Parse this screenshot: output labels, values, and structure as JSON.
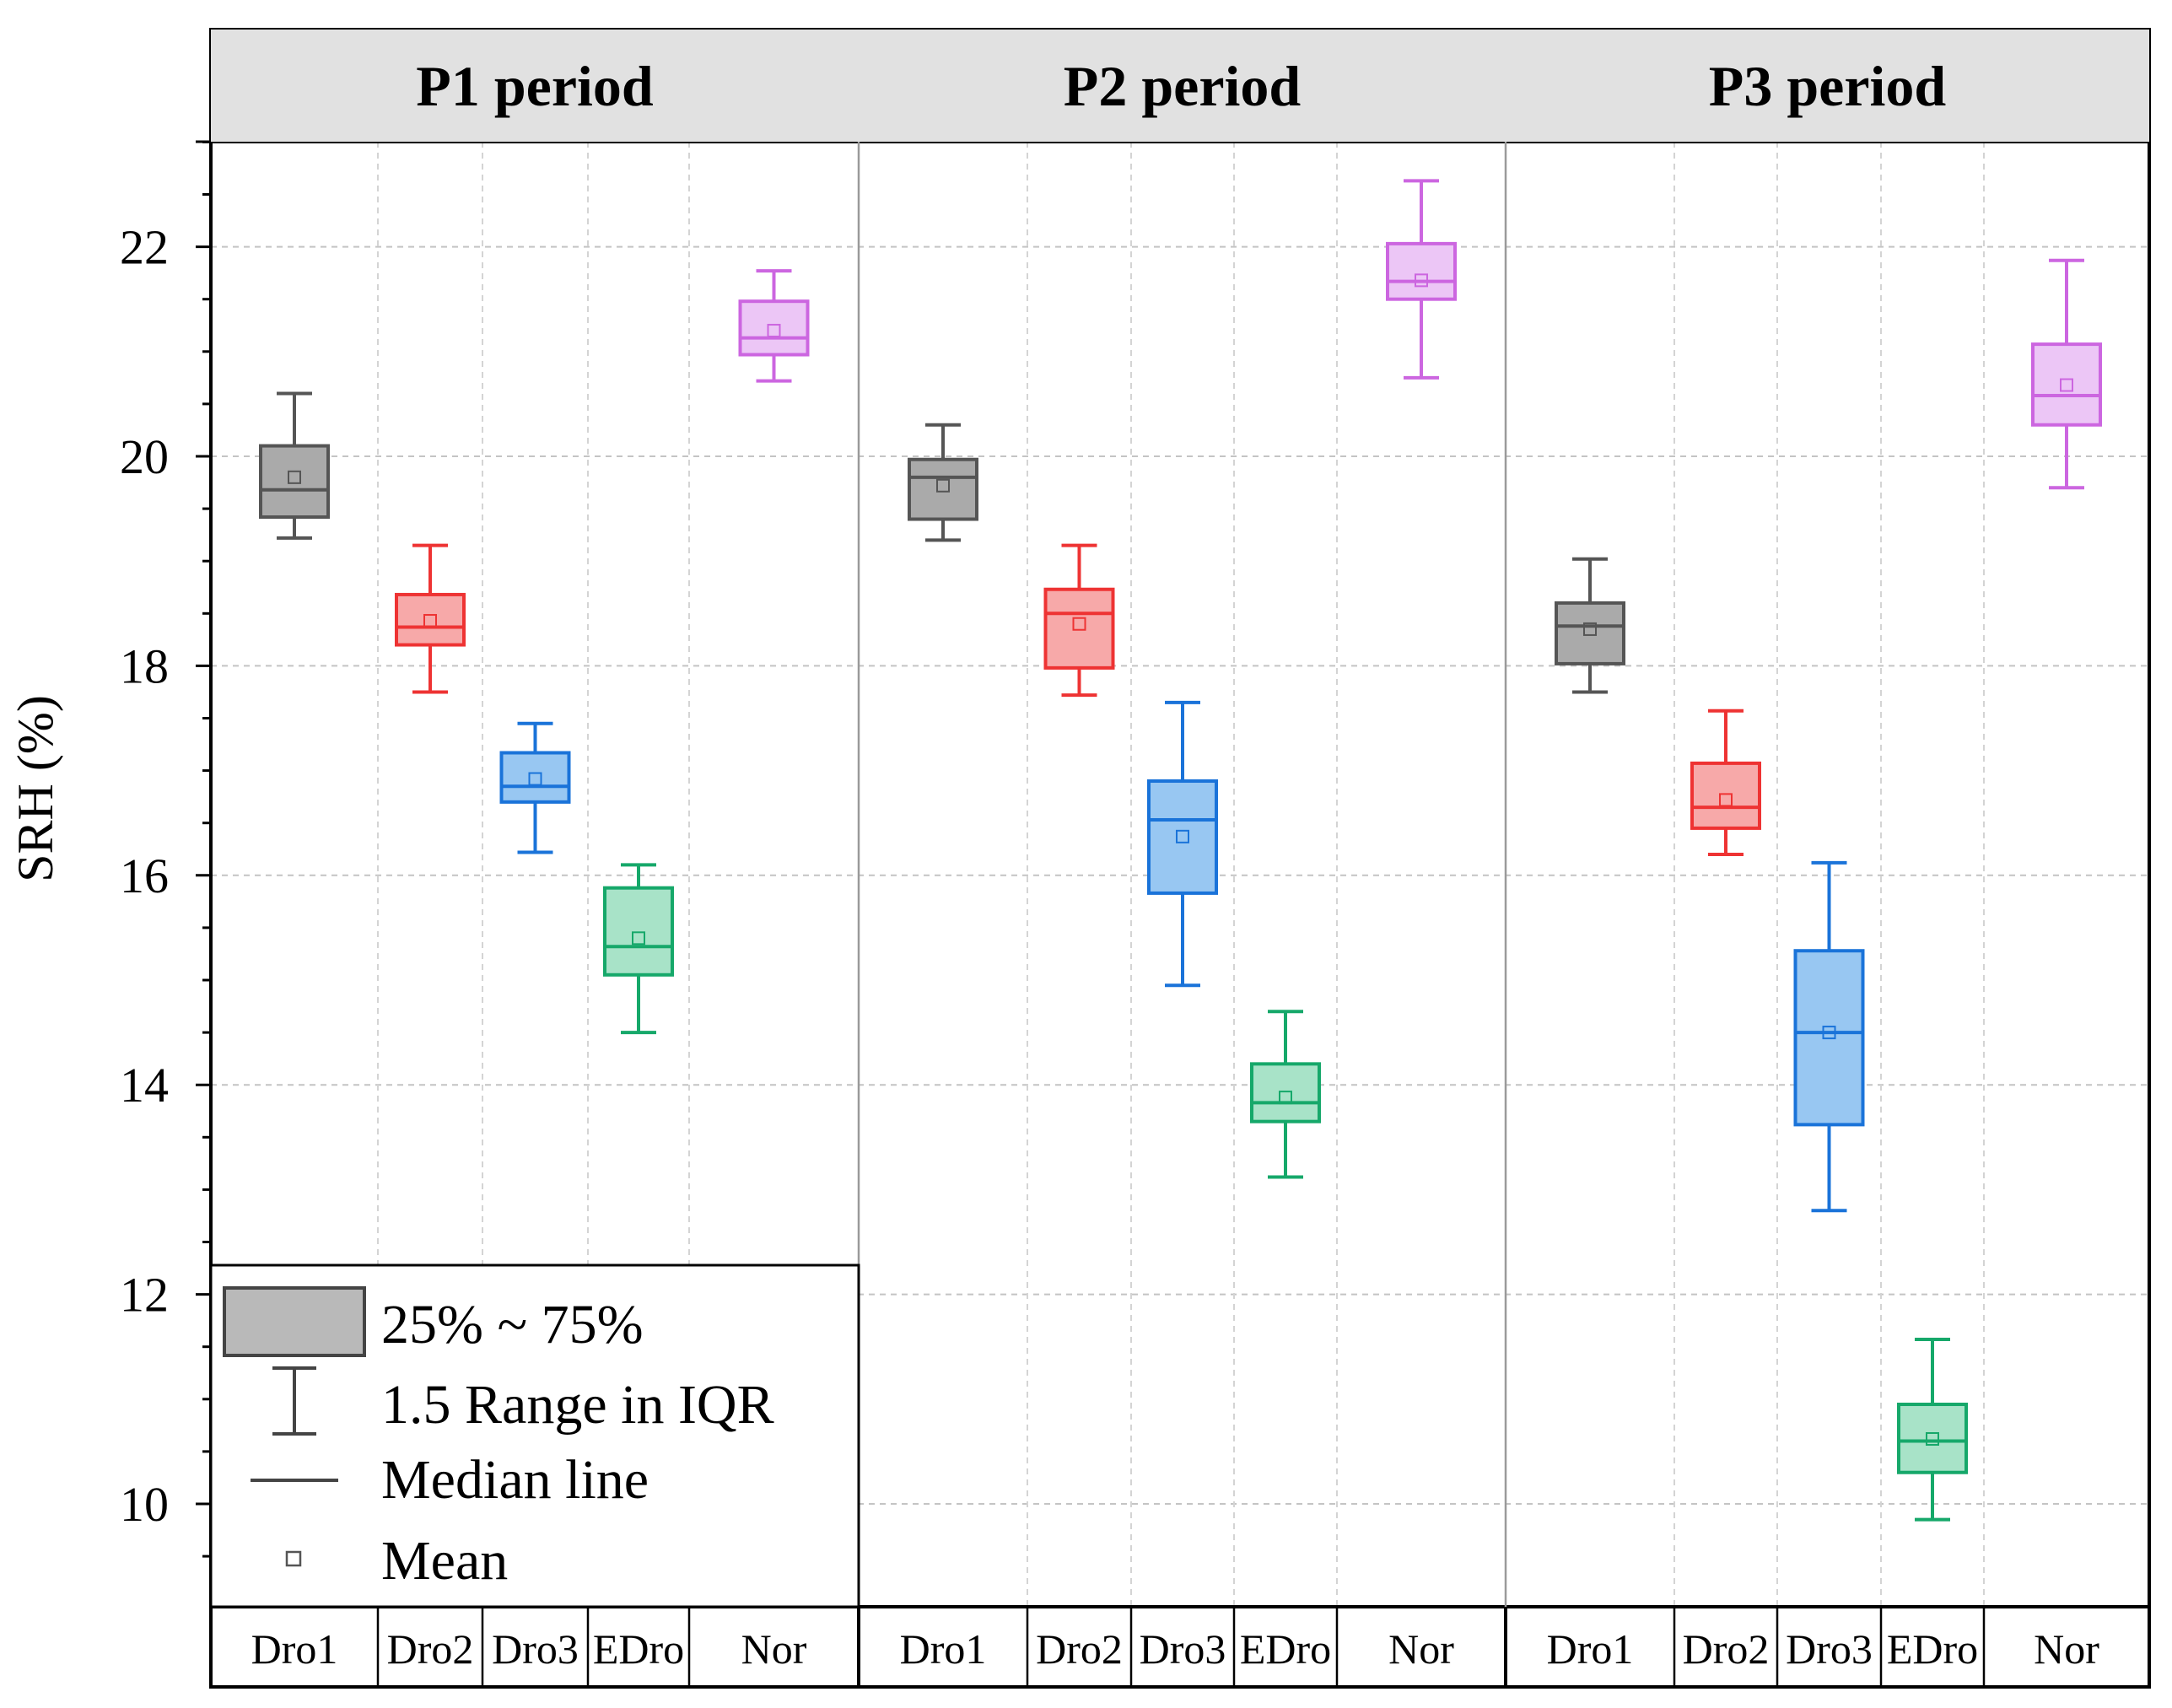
{
  "chart_data": {
    "type": "box",
    "ylabel": "SRH (%)",
    "ylim": [
      9,
      23
    ],
    "yticks": [
      10,
      12,
      14,
      16,
      18,
      20,
      22
    ],
    "grid": true,
    "categories": [
      "Dro1",
      "Dro2",
      "Dro3",
      "EDro",
      "Nor"
    ],
    "colors": {
      "Dro1": {
        "stroke": "#555555",
        "fill": "#aaaaaa"
      },
      "Dro2": {
        "stroke": "#ee3333",
        "fill": "#f7a9a9"
      },
      "Dro3": {
        "stroke": "#1a73d9",
        "fill": "#98c7f2"
      },
      "EDro": {
        "stroke": "#16a86a",
        "fill": "#a8e3c8"
      },
      "Nor": {
        "stroke": "#cc66e0",
        "fill": "#ecc6f6"
      }
    },
    "panels": [
      {
        "title": "P1 period",
        "boxes": [
          {
            "category": "Dro1",
            "whisker_low": 19.22,
            "q1": 19.42,
            "median": 19.68,
            "q3": 20.1,
            "whisker_high": 20.6,
            "mean": 19.8
          },
          {
            "category": "Dro2",
            "whisker_low": 17.75,
            "q1": 18.2,
            "median": 18.37,
            "q3": 18.68,
            "whisker_high": 19.15,
            "mean": 18.43
          },
          {
            "category": "Dro3",
            "whisker_low": 16.22,
            "q1": 16.7,
            "median": 16.85,
            "q3": 17.17,
            "whisker_high": 17.45,
            "mean": 16.92
          },
          {
            "category": "EDro",
            "whisker_low": 14.5,
            "q1": 15.05,
            "median": 15.32,
            "q3": 15.88,
            "whisker_high": 16.1,
            "mean": 15.4
          },
          {
            "category": "Nor",
            "whisker_low": 20.72,
            "q1": 20.97,
            "median": 21.13,
            "q3": 21.48,
            "whisker_high": 21.77,
            "mean": 21.2
          }
        ]
      },
      {
        "title": "P2 period",
        "boxes": [
          {
            "category": "Dro1",
            "whisker_low": 19.2,
            "q1": 19.4,
            "median": 19.8,
            "q3": 19.97,
            "whisker_high": 20.3,
            "mean": 19.72
          },
          {
            "category": "Dro2",
            "whisker_low": 17.72,
            "q1": 17.98,
            "median": 18.5,
            "q3": 18.73,
            "whisker_high": 19.15,
            "mean": 18.4
          },
          {
            "category": "Dro3",
            "whisker_low": 14.95,
            "q1": 15.83,
            "median": 16.53,
            "q3": 16.9,
            "whisker_high": 17.65,
            "mean": 16.37
          },
          {
            "category": "EDro",
            "whisker_low": 13.12,
            "q1": 13.65,
            "median": 13.83,
            "q3": 14.2,
            "whisker_high": 14.7,
            "mean": 13.88
          },
          {
            "category": "Nor",
            "whisker_low": 20.75,
            "q1": 21.5,
            "median": 21.67,
            "q3": 22.03,
            "whisker_high": 22.63,
            "mean": 21.68
          }
        ]
      },
      {
        "title": "P3 period",
        "boxes": [
          {
            "category": "Dro1",
            "whisker_low": 17.75,
            "q1": 18.02,
            "median": 18.38,
            "q3": 18.6,
            "whisker_high": 19.02,
            "mean": 18.35
          },
          {
            "category": "Dro2",
            "whisker_low": 16.2,
            "q1": 16.45,
            "median": 16.65,
            "q3": 17.07,
            "whisker_high": 17.57,
            "mean": 16.72
          },
          {
            "category": "Dro3",
            "whisker_low": 12.8,
            "q1": 13.62,
            "median": 14.5,
            "q3": 15.28,
            "whisker_high": 16.12,
            "mean": 14.5
          },
          {
            "category": "EDro",
            "whisker_low": 9.85,
            "q1": 10.3,
            "median": 10.6,
            "q3": 10.95,
            "whisker_high": 11.57,
            "mean": 10.62
          },
          {
            "category": "Nor",
            "whisker_low": 19.7,
            "q1": 20.3,
            "median": 20.58,
            "q3": 21.07,
            "whisker_high": 21.87,
            "mean": 20.68
          }
        ]
      }
    ],
    "legend": {
      "position": "bottom-left",
      "items": [
        "25% ~ 75%",
        "1.5 Range in IQR",
        "Median line",
        "Mean"
      ]
    }
  }
}
